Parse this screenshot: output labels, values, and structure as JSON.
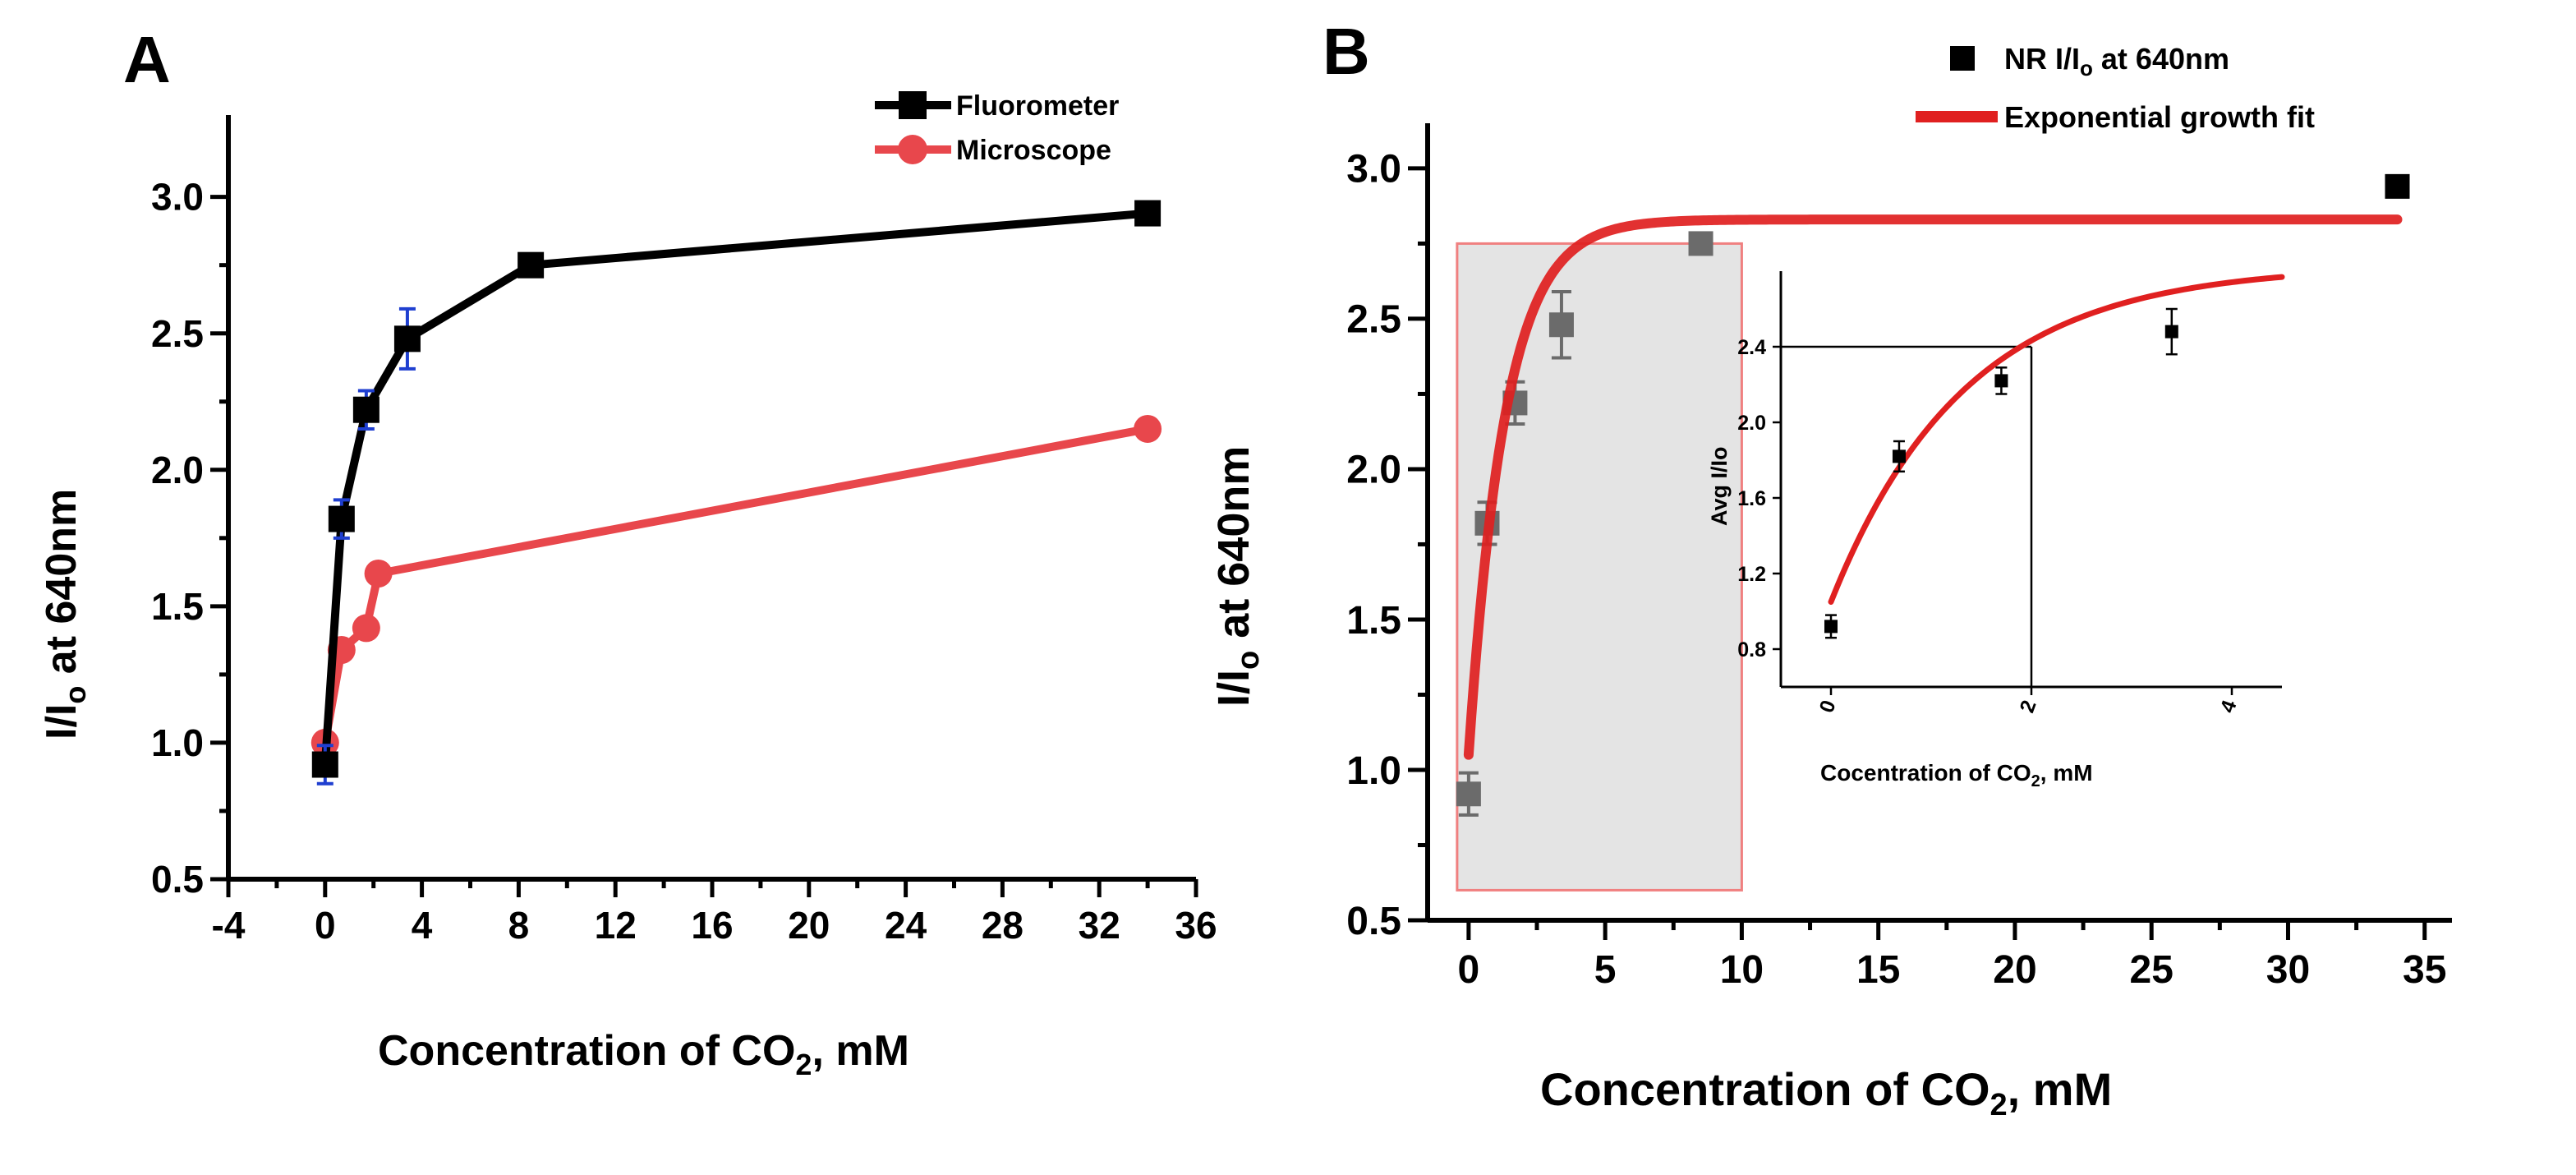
{
  "chart_data": [
    {
      "panel_label": "A",
      "type": "line",
      "xlabel": "Concentration of CO",
      "xlabel_sub": "2",
      "xlabel_tail": ", mM",
      "ylabel": "I/I",
      "ylabel_sub": "o",
      "ylabel_tail": " at 640nm",
      "xlim": [
        -4,
        36
      ],
      "ylim": [
        0.5,
        3.3
      ],
      "xticks": [
        "-4",
        "0",
        "4",
        "8",
        "12",
        "16",
        "20",
        "24",
        "28",
        "32",
        "36"
      ],
      "xtick_values": [
        -4,
        0,
        4,
        8,
        12,
        16,
        20,
        24,
        28,
        32,
        36
      ],
      "yticks": [
        "0.5",
        "1.0",
        "1.5",
        "2.0",
        "2.5",
        "3.0"
      ],
      "ytick_values": [
        0.5,
        1.0,
        1.5,
        2.0,
        2.5,
        3.0
      ],
      "legend_position": "top-right",
      "series": [
        {
          "name": "Fluorometer",
          "color": "#000000",
          "errorbar_color": "#1f3fd0",
          "marker": "square",
          "x": [
            0,
            0.68,
            1.7,
            3.4,
            8.5,
            34
          ],
          "y": [
            0.92,
            1.82,
            2.22,
            2.48,
            2.75,
            2.94
          ],
          "err": [
            0.07,
            0.07,
            0.07,
            0.11,
            0.03,
            0.03
          ]
        },
        {
          "name": "Microscope",
          "color": "#e8474c",
          "marker": "circle",
          "x": [
            0,
            0.68,
            1.7,
            2.2,
            34
          ],
          "y": [
            1.0,
            1.34,
            1.42,
            1.62,
            2.15
          ]
        }
      ]
    },
    {
      "panel_label": "B",
      "type": "scatter",
      "xlabel": "Concentration of CO",
      "xlabel_sub": "2",
      "xlabel_tail": ", mM",
      "ylabel": "I/I",
      "ylabel_sub": "o",
      "ylabel_tail": " at 640nm",
      "xlim": [
        -1.5,
        36
      ],
      "ylim": [
        0.5,
        3.15
      ],
      "xticks": [
        "0",
        "5",
        "10",
        "15",
        "20",
        "25",
        "30",
        "35"
      ],
      "xtick_values": [
        0,
        5,
        10,
        15,
        20,
        25,
        30,
        35
      ],
      "yticks": [
        "0.5",
        "1.0",
        "1.5",
        "2.0",
        "2.5",
        "3.0"
      ],
      "ytick_values": [
        0.5,
        1.0,
        1.5,
        2.0,
        2.5,
        3.0
      ],
      "legend_position": "top-right",
      "legend": [
        "NR I/I",
        "o",
        " at 640nm",
        "Exponential growth fit"
      ],
      "series": [
        {
          "name": "NR I/Io at 640nm",
          "color": "#000000",
          "marker": "square",
          "x": [
            0,
            0.68,
            1.7,
            3.4,
            8.5,
            34
          ],
          "y": [
            0.92,
            1.82,
            2.22,
            2.48,
            2.75,
            2.94
          ],
          "err": [
            0.07,
            0.07,
            0.07,
            0.11,
            0.03,
            0.03
          ]
        },
        {
          "name": "Exponential growth fit",
          "color": "#e02020",
          "type": "fit",
          "model": "y = A - B*exp(-k*x)",
          "params": {
            "A": 2.83,
            "B": 1.78,
            "k": 0.75
          },
          "x_range": [
            0,
            34
          ]
        }
      ],
      "highlight_region": {
        "x": [
          0,
          10
        ],
        "y": [
          0.6,
          2.75
        ]
      },
      "inset": {
        "type": "scatter",
        "xlabel": "Cocentration of CO",
        "xlabel_sub": "2",
        "xlabel_tail": ", mM",
        "ylabel": "Avg I/Io",
        "xlim": [
          -0.5,
          4.5
        ],
        "ylim": [
          0.6,
          2.8
        ],
        "xticks": [
          "0",
          "2",
          "4"
        ],
        "xtick_values": [
          0,
          2,
          4
        ],
        "yticks": [
          "0.8",
          "1.2",
          "1.6",
          "2.0",
          "2.4"
        ],
        "ytick_values": [
          0.8,
          1.2,
          1.6,
          2.0,
          2.4
        ],
        "points": {
          "x": [
            0,
            0.68,
            1.7,
            3.4
          ],
          "y": [
            0.92,
            1.82,
            2.22,
            2.48
          ],
          "err": [
            0.06,
            0.08,
            0.07,
            0.12
          ]
        },
        "reference_lines": {
          "y": 2.4,
          "x": 2.0
        }
      }
    }
  ]
}
